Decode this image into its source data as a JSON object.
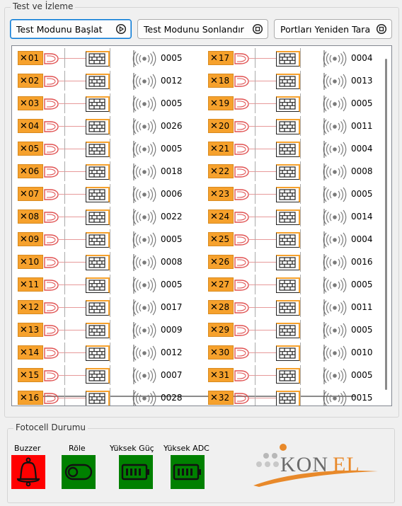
{
  "test_group": {
    "title": "Test ve İzleme",
    "buttons": {
      "start": "Test Modunu Başlat",
      "stop": "Test Modunu Sonlandır",
      "rescan": "Portları Yeniden Tara"
    }
  },
  "channels": {
    "left": [
      {
        "id": "01",
        "count": "0005"
      },
      {
        "id": "02",
        "count": "0012"
      },
      {
        "id": "03",
        "count": "0005"
      },
      {
        "id": "04",
        "count": "0026"
      },
      {
        "id": "05",
        "count": "0005"
      },
      {
        "id": "06",
        "count": "0018"
      },
      {
        "id": "07",
        "count": "0006"
      },
      {
        "id": "08",
        "count": "0022"
      },
      {
        "id": "09",
        "count": "0005"
      },
      {
        "id": "10",
        "count": "0008"
      },
      {
        "id": "11",
        "count": "0005"
      },
      {
        "id": "12",
        "count": "0017"
      },
      {
        "id": "13",
        "count": "0009"
      },
      {
        "id": "14",
        "count": "0012"
      },
      {
        "id": "15",
        "count": "0007"
      },
      {
        "id": "16",
        "count": "0028"
      }
    ],
    "right": [
      {
        "id": "17",
        "count": "0004"
      },
      {
        "id": "18",
        "count": "0013"
      },
      {
        "id": "19",
        "count": "0005"
      },
      {
        "id": "20",
        "count": "0011"
      },
      {
        "id": "21",
        "count": "0004"
      },
      {
        "id": "22",
        "count": "0008"
      },
      {
        "id": "23",
        "count": "0005"
      },
      {
        "id": "24",
        "count": "0014"
      },
      {
        "id": "25",
        "count": "0004"
      },
      {
        "id": "26",
        "count": "0016"
      },
      {
        "id": "27",
        "count": "0005"
      },
      {
        "id": "28",
        "count": "0011"
      },
      {
        "id": "29",
        "count": "0005"
      },
      {
        "id": "30",
        "count": "0010"
      },
      {
        "id": "31",
        "count": "0005"
      },
      {
        "id": "32",
        "count": "0015"
      }
    ]
  },
  "fotocell_group": {
    "title": "Fotocell Durumu",
    "indicators": [
      {
        "label": "Buzzer",
        "icon": "bell-icon",
        "color": "#ff0000"
      },
      {
        "label": "Röle",
        "icon": "toggle-icon",
        "color": "#008000"
      },
      {
        "label": "Yüksek Güç",
        "icon": "battery-icon",
        "color": "#008000"
      },
      {
        "label": "Yüksek ADC",
        "icon": "battery-icon",
        "color": "#008000"
      }
    ]
  },
  "logo": {
    "text_kon": "KON",
    "text_el": "EL"
  },
  "colors": {
    "tag": "#f6a12c",
    "wire": "#e79a9a",
    "gate": "#e05050",
    "logo_orange": "#e8892a",
    "logo_gray": "#6b6b6b"
  }
}
